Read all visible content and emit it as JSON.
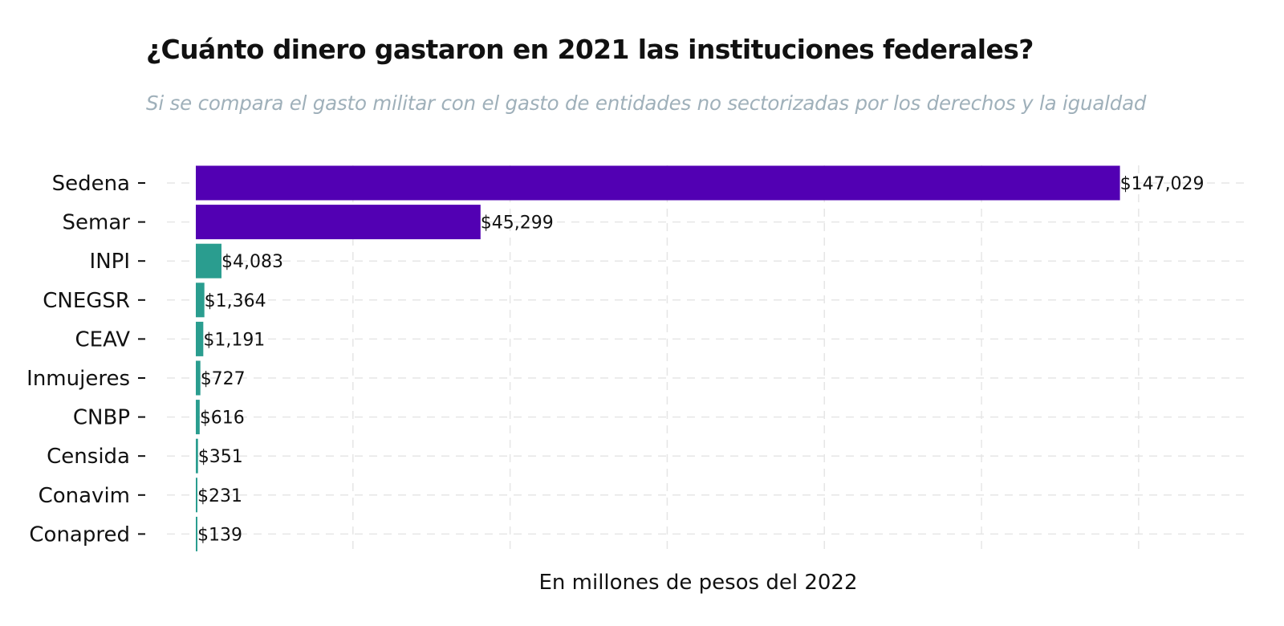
{
  "chart_data": {
    "type": "bar",
    "orientation": "horizontal",
    "title": "¿Cuánto dinero gastaron en 2021 las instituciones federales?",
    "subtitle": "Si se compara el gasto militar con el gasto de entidades no sectorizadas por los derechos y la igualdad",
    "xlabel": "En millones de pesos del 2022",
    "ylabel": "",
    "categories": [
      "Sedena",
      "Semar",
      "INPI",
      "CNEGSR",
      "CEAV",
      "Inmujeres",
      "CNBP",
      "Censida",
      "Conavim",
      "Conapred"
    ],
    "values": [
      147029,
      45299,
      4083,
      1364,
      1191,
      727,
      616,
      351,
      231,
      139
    ],
    "value_labels": [
      "$147,029",
      "$45,299",
      "$4,083",
      "$1,364",
      "$1,191",
      "$727",
      "$616",
      "$351",
      "$231",
      "$139"
    ],
    "xlim": [
      0,
      167000
    ],
    "grid": true,
    "x_ticks_shown": false,
    "colors": {
      "military": "#5200b3",
      "civil": "#2a9d8f",
      "grid": "#e6e6e6",
      "text": "#111111",
      "subtitle": "#9fb0ba"
    },
    "bar_groups": [
      "military",
      "military",
      "civil",
      "civil",
      "civil",
      "civil",
      "civil",
      "civil",
      "civil",
      "civil"
    ]
  }
}
